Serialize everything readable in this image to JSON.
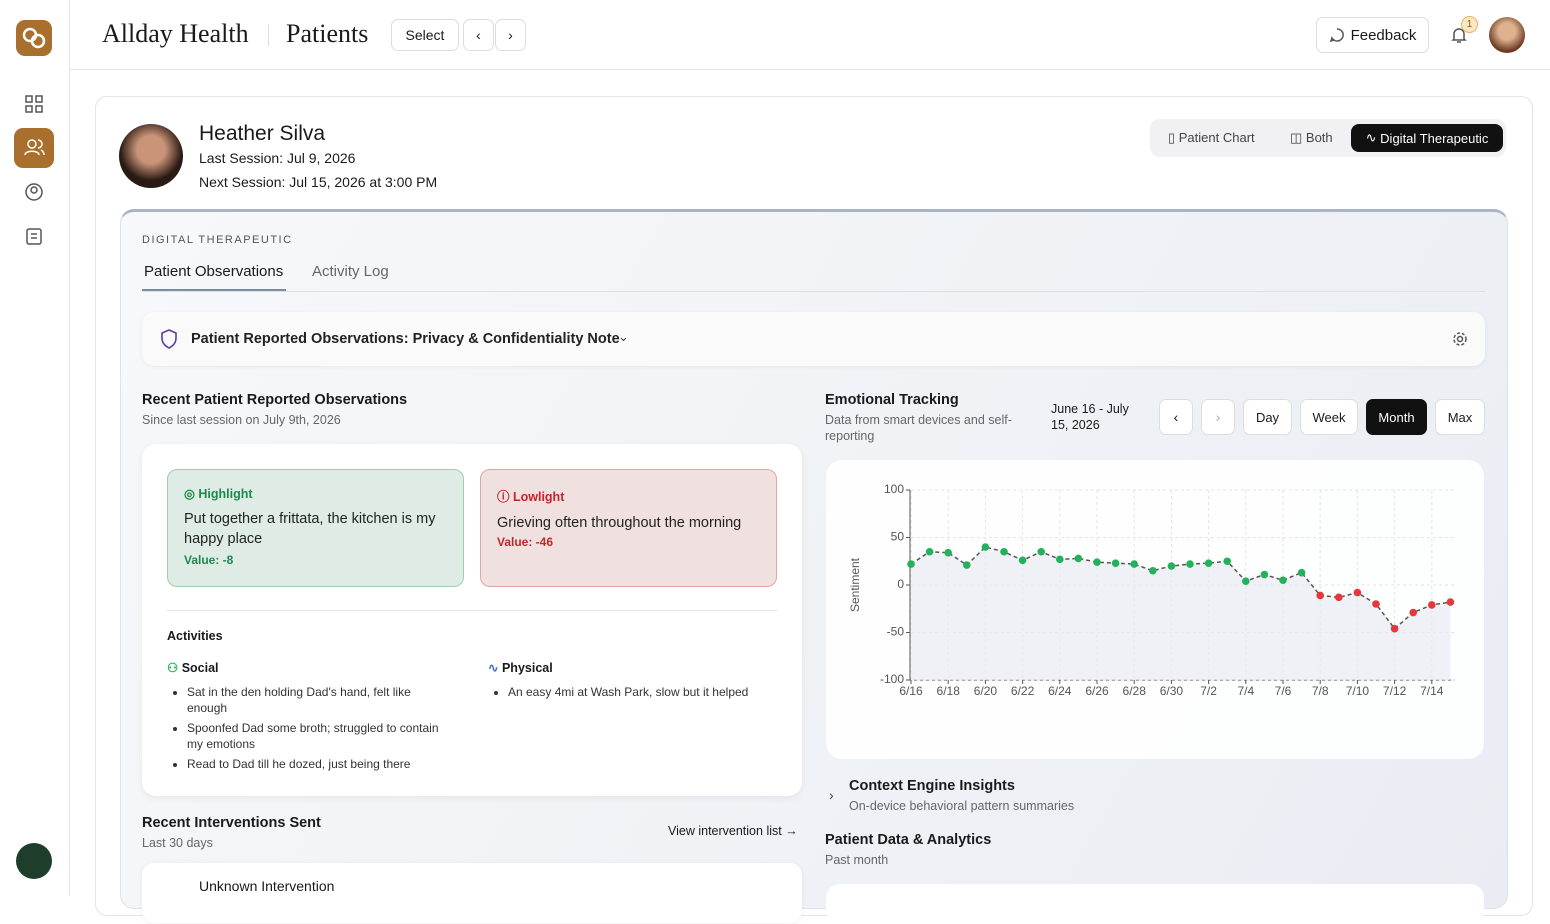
{
  "app": {
    "brand": "Allday Health",
    "section": "Patients",
    "select": "Select",
    "feedback": "Feedback",
    "notifications": 1
  },
  "patient": {
    "name": "Heather Silva",
    "last_session": "Last Session: Jul 9, 2026",
    "next_session": "Next Session: Jul 15, 2026 at 3:00 PM"
  },
  "view_toggle": [
    "Patient Chart",
    "Both",
    "Digital Therapeutic"
  ],
  "panel": {
    "label": "DIGITAL THERAPEUTIC",
    "tabs": [
      "Patient Observations",
      "Activity Log"
    ]
  },
  "privacy_note": "Patient Reported Observations: Privacy & Confidentiality Note",
  "observations": {
    "title": "Recent Patient Reported Observations",
    "subtitle": "Since last session on July 9th, 2026",
    "highlight": {
      "label": "Highlight",
      "text": "Put together a frittata, the kitchen is my happy place",
      "value": "Value: -8"
    },
    "lowlight": {
      "label": "Lowlight",
      "text": "Grieving often throughout the morning",
      "value": "Value: -46"
    },
    "activities_title": "Activities",
    "social": {
      "label": "Social",
      "items": [
        "Sat in the den holding Dad's hand, felt like enough",
        "Spoonfed Dad some broth; struggled to contain my emotions",
        "Read to Dad till he dozed, just being there"
      ]
    },
    "physical": {
      "label": "Physical",
      "items": [
        "An easy 4mi at Wash Park, slow but it helped"
      ]
    }
  },
  "interventions": {
    "title": "Recent Interventions Sent",
    "subtitle": "Last 30 days",
    "link": "View intervention list →",
    "items": [
      "Unknown Intervention"
    ]
  },
  "tracking": {
    "title": "Emotional Tracking",
    "subtitle": "Data from smart devices and self-reporting",
    "range": "June 16 - July 15, 2026",
    "buttons": [
      "Day",
      "Week",
      "Month",
      "Max"
    ],
    "active": "Month"
  },
  "context": {
    "title": "Context Engine Insights",
    "subtitle": "On-device behavioral pattern summaries"
  },
  "analytics": {
    "title": "Patient Data & Analytics",
    "subtitle": "Past month"
  },
  "chart_data": {
    "type": "line",
    "y_label": "Sentiment",
    "categories": [
      "6/16",
      null,
      "6/18",
      null,
      "6/20",
      null,
      "6/22",
      null,
      "6/24",
      null,
      "6/26",
      null,
      "6/28",
      null,
      "6/30",
      null,
      "7/2",
      null,
      "7/4",
      null,
      "7/6",
      null,
      "7/8",
      null,
      "7/10",
      null,
      "7/12",
      null,
      "7/14",
      null
    ],
    "series": [
      {
        "name": "Sentiment",
        "color": "#555555",
        "positive_color": "#22b35a",
        "negative_color": "#e5383b",
        "values": [
          22,
          35,
          34,
          21,
          40,
          35,
          26,
          35,
          27,
          28,
          24,
          23,
          22,
          15,
          20,
          22,
          23,
          25,
          4,
          11,
          5,
          13,
          -11,
          -13,
          -8,
          -20,
          -46,
          -29,
          -21,
          -18
        ]
      }
    ],
    "ylim": [
      -100,
      100
    ],
    "yticks": [
      100,
      50,
      0,
      -50,
      -100
    ],
    "grid": true
  }
}
